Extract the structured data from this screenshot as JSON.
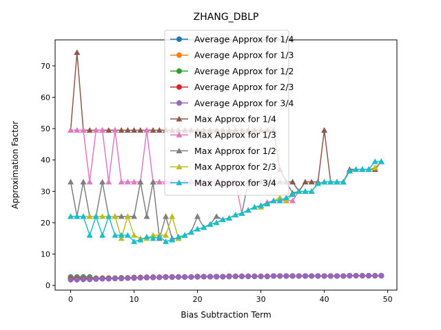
{
  "chart_data": {
    "type": "line",
    "title": "ZHANG_DBLP",
    "xlabel": "Bias Subtraction Term",
    "ylabel": "Approximation Factor",
    "xlim": [
      -2.45,
      51.45
    ],
    "ylim": [
      -1.5,
      78.3
    ],
    "xticks": [
      0,
      10,
      20,
      30,
      40,
      50
    ],
    "yticks": [
      0,
      10,
      20,
      30,
      40,
      50,
      60,
      70
    ],
    "grid": false,
    "legend_position": "upper center",
    "x": [
      0,
      1,
      2,
      3,
      4,
      5,
      6,
      7,
      8,
      9,
      10,
      11,
      12,
      13,
      14,
      15,
      16,
      17,
      18,
      19,
      20,
      21,
      22,
      23,
      24,
      25,
      26,
      27,
      28,
      29,
      30,
      31,
      32,
      33,
      34,
      35,
      36,
      37,
      38,
      39,
      40,
      41,
      42,
      43,
      44,
      45,
      46,
      47,
      48,
      49
    ],
    "series": [
      {
        "name": "Average Approx for 1/4",
        "color": "#1f77b4",
        "marker": "circle",
        "values": [
          2.7,
          2.7,
          2.7,
          2.7,
          2.3,
          2.3,
          2.3,
          2.3,
          2.4,
          2.4,
          2.5,
          2.5,
          2.6,
          2.6,
          2.6,
          2.7,
          2.7,
          2.7,
          2.7,
          2.7,
          2.8,
          2.8,
          2.8,
          2.8,
          2.8,
          2.9,
          2.9,
          2.9,
          2.9,
          2.9,
          2.9,
          2.9,
          3.0,
          3.0,
          3.0,
          3.0,
          3.0,
          3.0,
          3.0,
          3.0,
          3.0,
          3.0,
          3.0,
          3.0,
          3.1,
          3.1,
          3.1,
          3.1,
          3.1,
          3.1
        ]
      },
      {
        "name": "Average Approx for 1/3",
        "color": "#ff7f0e",
        "marker": "circle",
        "values": [
          2.4,
          2.4,
          2.4,
          2.4,
          2.3,
          2.3,
          2.3,
          2.3,
          2.4,
          2.4,
          2.5,
          2.5,
          2.6,
          2.6,
          2.6,
          2.7,
          2.7,
          2.7,
          2.7,
          2.7,
          2.8,
          2.8,
          2.8,
          2.8,
          2.8,
          2.9,
          2.9,
          2.9,
          2.9,
          2.9,
          2.9,
          2.9,
          3.0,
          3.0,
          3.0,
          3.0,
          3.0,
          3.0,
          3.0,
          3.0,
          3.0,
          3.0,
          3.0,
          3.0,
          3.1,
          3.1,
          3.1,
          3.1,
          3.1,
          3.1
        ]
      },
      {
        "name": "Average Approx for 1/2",
        "color": "#2ca02c",
        "marker": "circle",
        "values": [
          2.2,
          2.2,
          2.2,
          2.2,
          2.2,
          2.3,
          2.3,
          2.3,
          2.4,
          2.4,
          2.5,
          2.5,
          2.6,
          2.6,
          2.6,
          2.7,
          2.7,
          2.7,
          2.7,
          2.7,
          2.8,
          2.8,
          2.8,
          2.8,
          2.8,
          2.9,
          2.9,
          2.9,
          2.9,
          2.9,
          2.9,
          2.9,
          3.0,
          3.0,
          3.0,
          3.0,
          3.0,
          3.0,
          3.0,
          3.0,
          3.0,
          3.0,
          3.0,
          3.0,
          3.1,
          3.1,
          3.1,
          3.1,
          3.1,
          3.1
        ]
      },
      {
        "name": "Average Approx for 2/3",
        "color": "#d62728",
        "marker": "circle",
        "values": [
          2.0,
          2.0,
          2.0,
          2.0,
          2.1,
          2.2,
          2.2,
          2.2,
          2.3,
          2.3,
          2.4,
          2.5,
          2.5,
          2.6,
          2.6,
          2.7,
          2.7,
          2.7,
          2.7,
          2.7,
          2.8,
          2.8,
          2.8,
          2.8,
          2.8,
          2.9,
          2.9,
          2.9,
          2.9,
          2.9,
          2.9,
          2.9,
          3.0,
          3.0,
          3.0,
          3.0,
          3.0,
          3.0,
          3.0,
          3.0,
          3.0,
          3.0,
          3.0,
          3.0,
          3.1,
          3.1,
          3.1,
          3.1,
          3.1,
          3.1
        ]
      },
      {
        "name": "Average Approx for 3/4",
        "color": "#9467bd",
        "marker": "circle",
        "values": [
          1.8,
          1.8,
          1.9,
          1.9,
          2.0,
          2.1,
          2.1,
          2.2,
          2.2,
          2.3,
          2.3,
          2.4,
          2.5,
          2.5,
          2.6,
          2.6,
          2.6,
          2.7,
          2.7,
          2.7,
          2.7,
          2.8,
          2.8,
          2.8,
          2.8,
          2.8,
          2.9,
          2.9,
          2.9,
          2.9,
          2.9,
          2.9,
          3.0,
          3.0,
          3.0,
          3.0,
          3.0,
          3.0,
          3.0,
          3.0,
          3.0,
          3.0,
          3.0,
          3.0,
          3.1,
          3.1,
          3.1,
          3.1,
          3.1,
          3.1
        ]
      },
      {
        "name": "Max Approx for 1/4",
        "color": "#8c564b",
        "marker": "triangle",
        "values": [
          49.5,
          74.3,
          49.5,
          49.5,
          49.5,
          49.5,
          49.5,
          49.5,
          49.5,
          49.5,
          49.5,
          49.5,
          49.5,
          49.5,
          49.5,
          49.5,
          49.5,
          49.5,
          49.5,
          49.5,
          49.5,
          49.5,
          49.5,
          49.5,
          49.5,
          49.5,
          49.5,
          49.5,
          49.5,
          49.5,
          49.5,
          49.5,
          49.5,
          37.0,
          33.0,
          33.0,
          30.0,
          33.0,
          33.0,
          33.0,
          49.5,
          33.0,
          33.0,
          33.0,
          37.0,
          37.0,
          37.0,
          37.0,
          37.0,
          39.5
        ]
      },
      {
        "name": "Max Approx for 1/3",
        "color": "#e377c2",
        "marker": "triangle",
        "values": [
          49.5,
          49.5,
          49.5,
          33.0,
          49.5,
          49.5,
          33.0,
          49.5,
          33.0,
          33.0,
          33.0,
          33.0,
          49.5,
          33.0,
          33.0,
          33.0,
          33.0,
          33.0,
          33.0,
          33.0,
          33.0,
          33.0,
          33.0,
          33.0,
          33.0,
          33.0,
          33.0,
          23.0,
          24.0,
          25.0,
          25.5,
          26.5,
          27.0,
          27.0,
          27.0,
          27.0,
          30.0,
          30.0,
          30.0,
          32.5,
          33.0,
          33.0,
          33.0,
          33.0,
          36.5,
          37.0,
          37.0,
          37.0,
          37.5,
          39.5
        ]
      },
      {
        "name": "Max Approx for 1/2",
        "color": "#7f7f7f",
        "marker": "triangle",
        "values": [
          33.0,
          22.0,
          33.0,
          22.0,
          22.0,
          33.0,
          22.0,
          22.0,
          22.0,
          22.0,
          22.0,
          33.0,
          22.0,
          33.0,
          15.0,
          22.0,
          15.0,
          15.0,
          16.0,
          17.0,
          22.0,
          18.5,
          19.5,
          22.0,
          21.0,
          21.5,
          22.5,
          23.0,
          33.0,
          33.0,
          33.0,
          33.0,
          33.0,
          33.0,
          33.0,
          29.5,
          30.0,
          30.0,
          30.0,
          32.5,
          33.0,
          33.0,
          33.0,
          33.0,
          36.5,
          37.0,
          37.0,
          37.0,
          37.5,
          39.5
        ]
      },
      {
        "name": "Max Approx for 2/3",
        "color": "#bcbd22",
        "marker": "triangle",
        "values": [
          22.0,
          22.0,
          22.0,
          22.0,
          22.0,
          22.0,
          22.0,
          22.0,
          15.0,
          22.0,
          16.0,
          15.0,
          15.0,
          16.0,
          16.0,
          16.0,
          22.0,
          15.0,
          16.0,
          17.0,
          18.0,
          18.5,
          19.5,
          20.0,
          21.0,
          21.5,
          22.5,
          23.0,
          24.0,
          25.0,
          25.0,
          26.0,
          27.0,
          28.0,
          27.0,
          29.0,
          30.0,
          30.0,
          30.0,
          32.5,
          33.0,
          33.0,
          33.0,
          33.0,
          36.5,
          37.0,
          37.0,
          37.0,
          37.5,
          39.5
        ]
      },
      {
        "name": "Max Approx for 3/4",
        "color": "#17becf",
        "marker": "triangle",
        "values": [
          22.0,
          22.0,
          22.0,
          16.0,
          22.0,
          16.0,
          22.0,
          16.0,
          16.0,
          16.0,
          14.0,
          14.5,
          15.5,
          15.0,
          15.5,
          14.0,
          14.5,
          15.5,
          16.0,
          17.0,
          18.0,
          18.5,
          19.5,
          20.0,
          21.0,
          21.5,
          22.5,
          23.0,
          24.0,
          25.0,
          25.5,
          26.0,
          27.0,
          27.0,
          28.0,
          29.0,
          30.0,
          30.0,
          30.0,
          32.5,
          33.0,
          33.0,
          33.0,
          33.0,
          36.5,
          37.0,
          37.0,
          37.0,
          39.5,
          39.5
        ]
      }
    ]
  }
}
